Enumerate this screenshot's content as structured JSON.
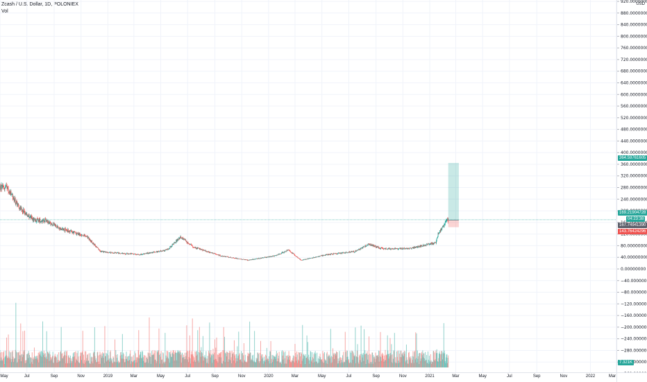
{
  "header": {
    "symbol": "Zcash / U.S. Dollar, 1D, POLONIEX",
    "volume_label": "Vol"
  },
  "price_scale": {
    "currency": "USD",
    "ticks": [
      "920.00000000",
      "880.00000000",
      "840.00000000",
      "800.00000000",
      "760.00000000",
      "720.00000000",
      "680.00000000",
      "640.00000000",
      "600.00000000",
      "560.00000000",
      "520.00000000",
      "480.00000000",
      "440.00000000",
      "400.00000000",
      "360.00000000",
      "320.00000000",
      "280.00000000",
      "240.00000000",
      "200.00000000",
      "160.00000000",
      "120.00000000",
      "80.00000000",
      "40.00000000",
      "0.00000000",
      "−40.00000000",
      "−80.00000000",
      "−120.00000000",
      "−160.00000000",
      "−200.00000000",
      "−240.00000000",
      "−280.00000000",
      "−320.00000000",
      "−360.00000000"
    ],
    "tick_values": [
      920,
      880,
      840,
      800,
      760,
      720,
      680,
      640,
      600,
      560,
      520,
      480,
      440,
      400,
      360,
      320,
      280,
      240,
      200,
      160,
      120,
      80,
      40,
      0,
      -40,
      -80,
      -120,
      -160,
      -200,
      -240,
      -280,
      -320,
      -360
    ],
    "badges": {
      "target": "364.59761605",
      "current": "169.21904728",
      "countdown": "04:23:38",
      "entry": "167.74941390",
      "stop": "143.76424296",
      "volume": "7.321K"
    }
  },
  "time_scale": {
    "labels": [
      "May",
      "Jul",
      "Sep",
      "Nov",
      "2019",
      "Mar",
      "May",
      "Jul",
      "Sep",
      "Nov",
      "2020",
      "Mar",
      "May",
      "Jul",
      "Sep",
      "Nov",
      "2021",
      "Mar",
      "May",
      "Jul",
      "Sep",
      "Nov",
      "2022",
      "Mar"
    ]
  },
  "colors": {
    "up": "#26a69a",
    "down": "#ef5350",
    "target_zone": "rgba(38,166,154,0.25)",
    "stop_zone": "rgba(239,83,80,0.25)",
    "grid": "#f0f3fa"
  },
  "chart_data": {
    "type": "candlestick",
    "title": "Zcash / U.S. Dollar, 1D, POLONIEX",
    "ylim": [
      -360,
      920
    ],
    "price_path": [
      {
        "date": "2018-05",
        "price": 280
      },
      {
        "date": "2018-06",
        "price": 210
      },
      {
        "date": "2018-07",
        "price": 170
      },
      {
        "date": "2018-08",
        "price": 165
      },
      {
        "date": "2018-09",
        "price": 140
      },
      {
        "date": "2018-10",
        "price": 125
      },
      {
        "date": "2018-11",
        "price": 110
      },
      {
        "date": "2018-12",
        "price": 60
      },
      {
        "date": "2019-01",
        "price": 55
      },
      {
        "date": "2019-03",
        "price": 50
      },
      {
        "date": "2019-05",
        "price": 65
      },
      {
        "date": "2019-06",
        "price": 110
      },
      {
        "date": "2019-07",
        "price": 75
      },
      {
        "date": "2019-09",
        "price": 45
      },
      {
        "date": "2019-11",
        "price": 30
      },
      {
        "date": "2020-01",
        "price": 45
      },
      {
        "date": "2020-02",
        "price": 65
      },
      {
        "date": "2020-03",
        "price": 30
      },
      {
        "date": "2020-05",
        "price": 50
      },
      {
        "date": "2020-07",
        "price": 60
      },
      {
        "date": "2020-08",
        "price": 85
      },
      {
        "date": "2020-09",
        "price": 70
      },
      {
        "date": "2020-11",
        "price": 70
      },
      {
        "date": "2021-01",
        "price": 90
      },
      {
        "date": "2021-01-20",
        "price": 120
      },
      {
        "date": "2021-02-10",
        "price": 167.7
      }
    ],
    "position": {
      "entry": 167.7494139,
      "target": 364.59761605,
      "stop": 143.76424296,
      "current": 169.21904728
    },
    "volume_last": "7.321K"
  }
}
